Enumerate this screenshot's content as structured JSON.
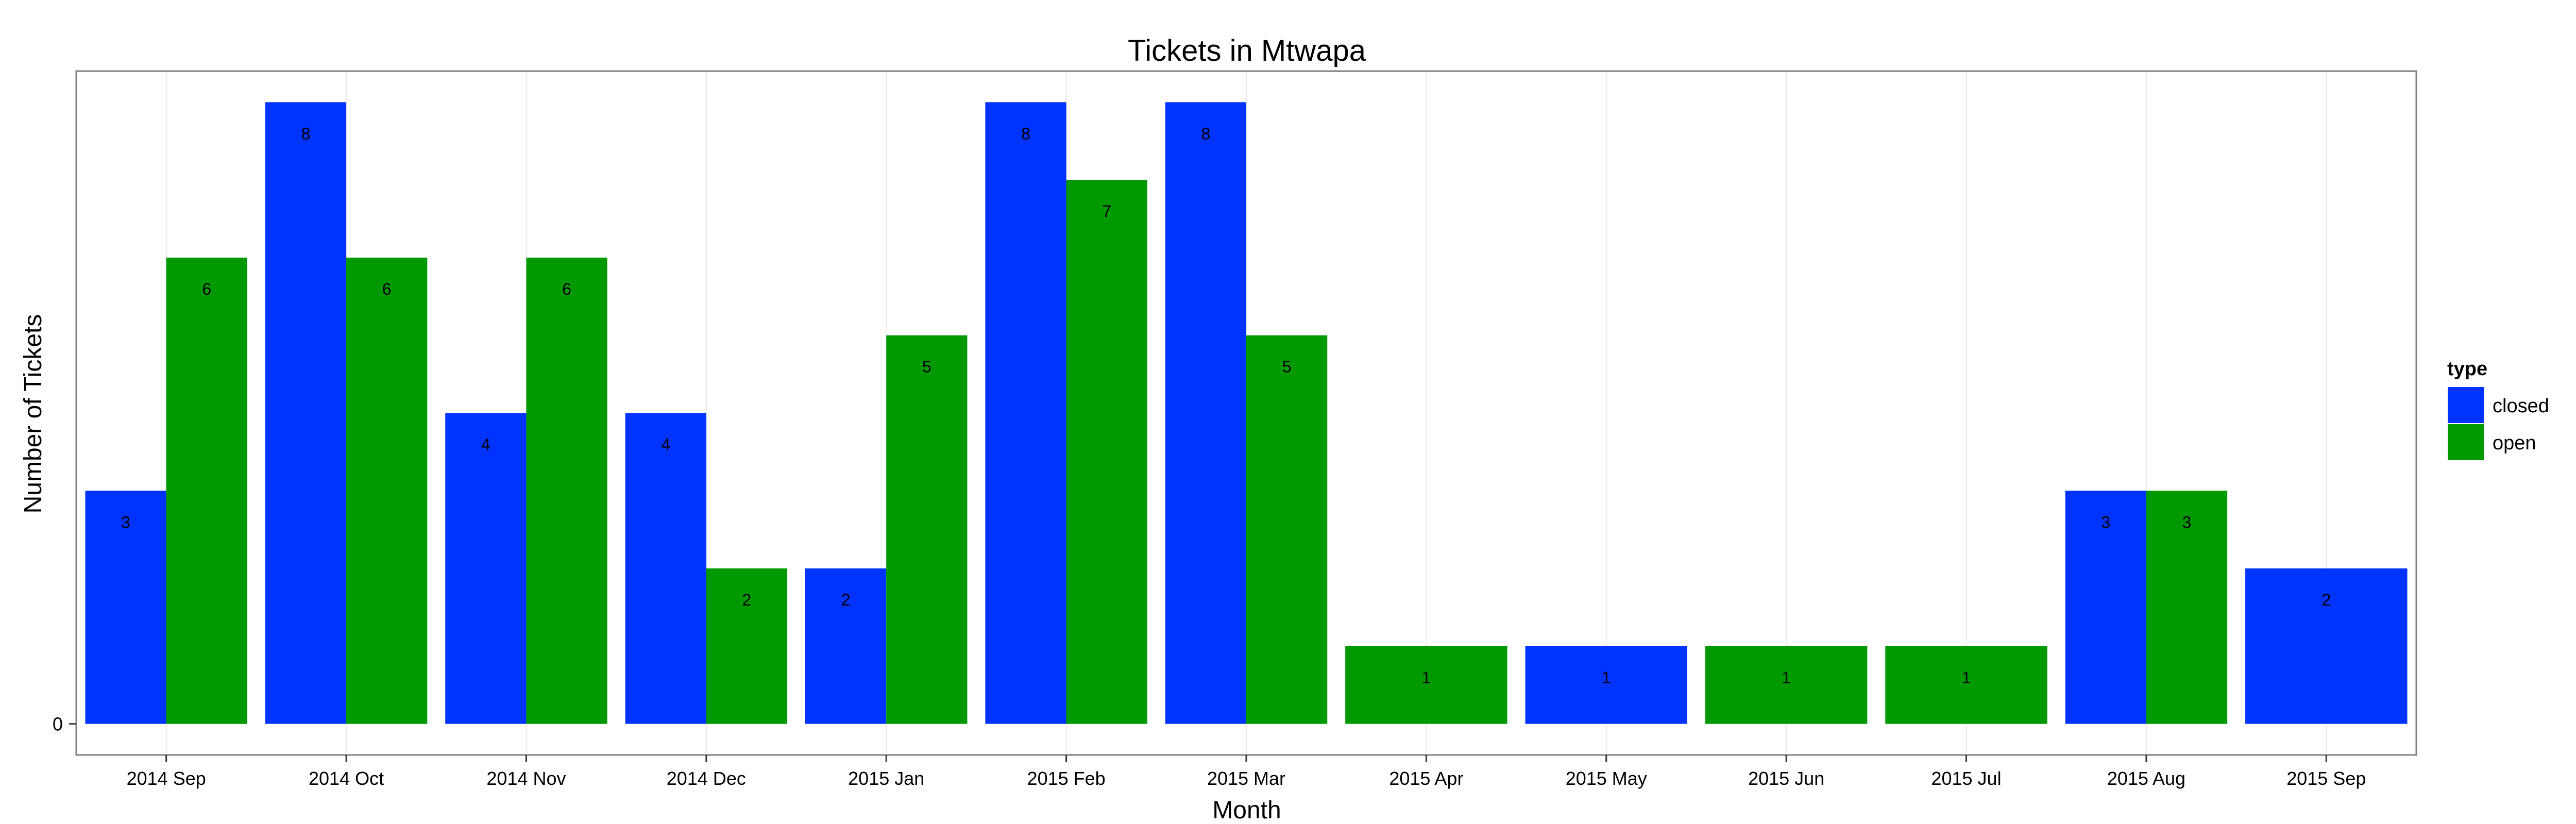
{
  "chart_data": {
    "type": "bar",
    "title": "Tickets in Mtwapa",
    "xlabel": "Month",
    "ylabel": "Number of Tickets",
    "categories": [
      "2014 Sep",
      "2014 Oct",
      "2014 Nov",
      "2014 Dec",
      "2015 Jan",
      "2015 Feb",
      "2015 Mar",
      "2015 Apr",
      "2015 May",
      "2015 Jun",
      "2015 Jul",
      "2015 Aug",
      "2015 Sep"
    ],
    "series": [
      {
        "name": "closed",
        "color": "#0033ff",
        "values": [
          3,
          8,
          4,
          4,
          2,
          8,
          8,
          null,
          1,
          null,
          null,
          3,
          2
        ]
      },
      {
        "name": "open",
        "color": "#009900",
        "values": [
          6,
          6,
          6,
          2,
          5,
          7,
          5,
          1,
          null,
          1,
          1,
          3,
          null
        ]
      }
    ],
    "yticks": [
      0
    ],
    "ytick_labels": [
      "0"
    ],
    "ylim": [
      -0.4,
      8.4
    ],
    "grid": true,
    "legend": {
      "title": "type",
      "position": "right"
    }
  }
}
